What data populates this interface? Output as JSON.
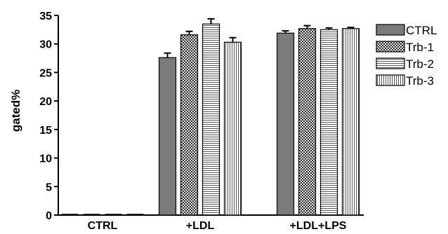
{
  "chart_data": {
    "type": "bar",
    "title": "",
    "xlabel": "",
    "ylabel": "gated%",
    "ylim": [
      0,
      35
    ],
    "yticks": [
      0,
      5,
      10,
      15,
      20,
      25,
      30,
      35
    ],
    "categories": [
      "CTRL",
      "+LDL",
      "+LDL+LPS"
    ],
    "series": [
      {
        "name": "CTRL",
        "values": [
          0,
          27.6,
          31.9
        ],
        "errors": [
          0,
          0.8,
          0.4
        ],
        "color": "#7a7a7a",
        "pattern": "solid"
      },
      {
        "name": "Trb-1",
        "values": [
          0,
          31.6,
          32.7
        ],
        "errors": [
          0,
          0.6,
          0.5
        ],
        "color": "#3a3a3a",
        "pattern": "checker"
      },
      {
        "name": "Trb-2",
        "values": [
          0,
          33.5,
          32.5
        ],
        "errors": [
          0,
          0.9,
          0.3
        ],
        "color": "#555555",
        "pattern": "hlines"
      },
      {
        "name": "Trb-3",
        "values": [
          0,
          30.3,
          32.7
        ],
        "errors": [
          0,
          0.8,
          0.2
        ],
        "color": "#555555",
        "pattern": "vlines"
      }
    ],
    "legend_position": "top-right",
    "grid": false
  }
}
